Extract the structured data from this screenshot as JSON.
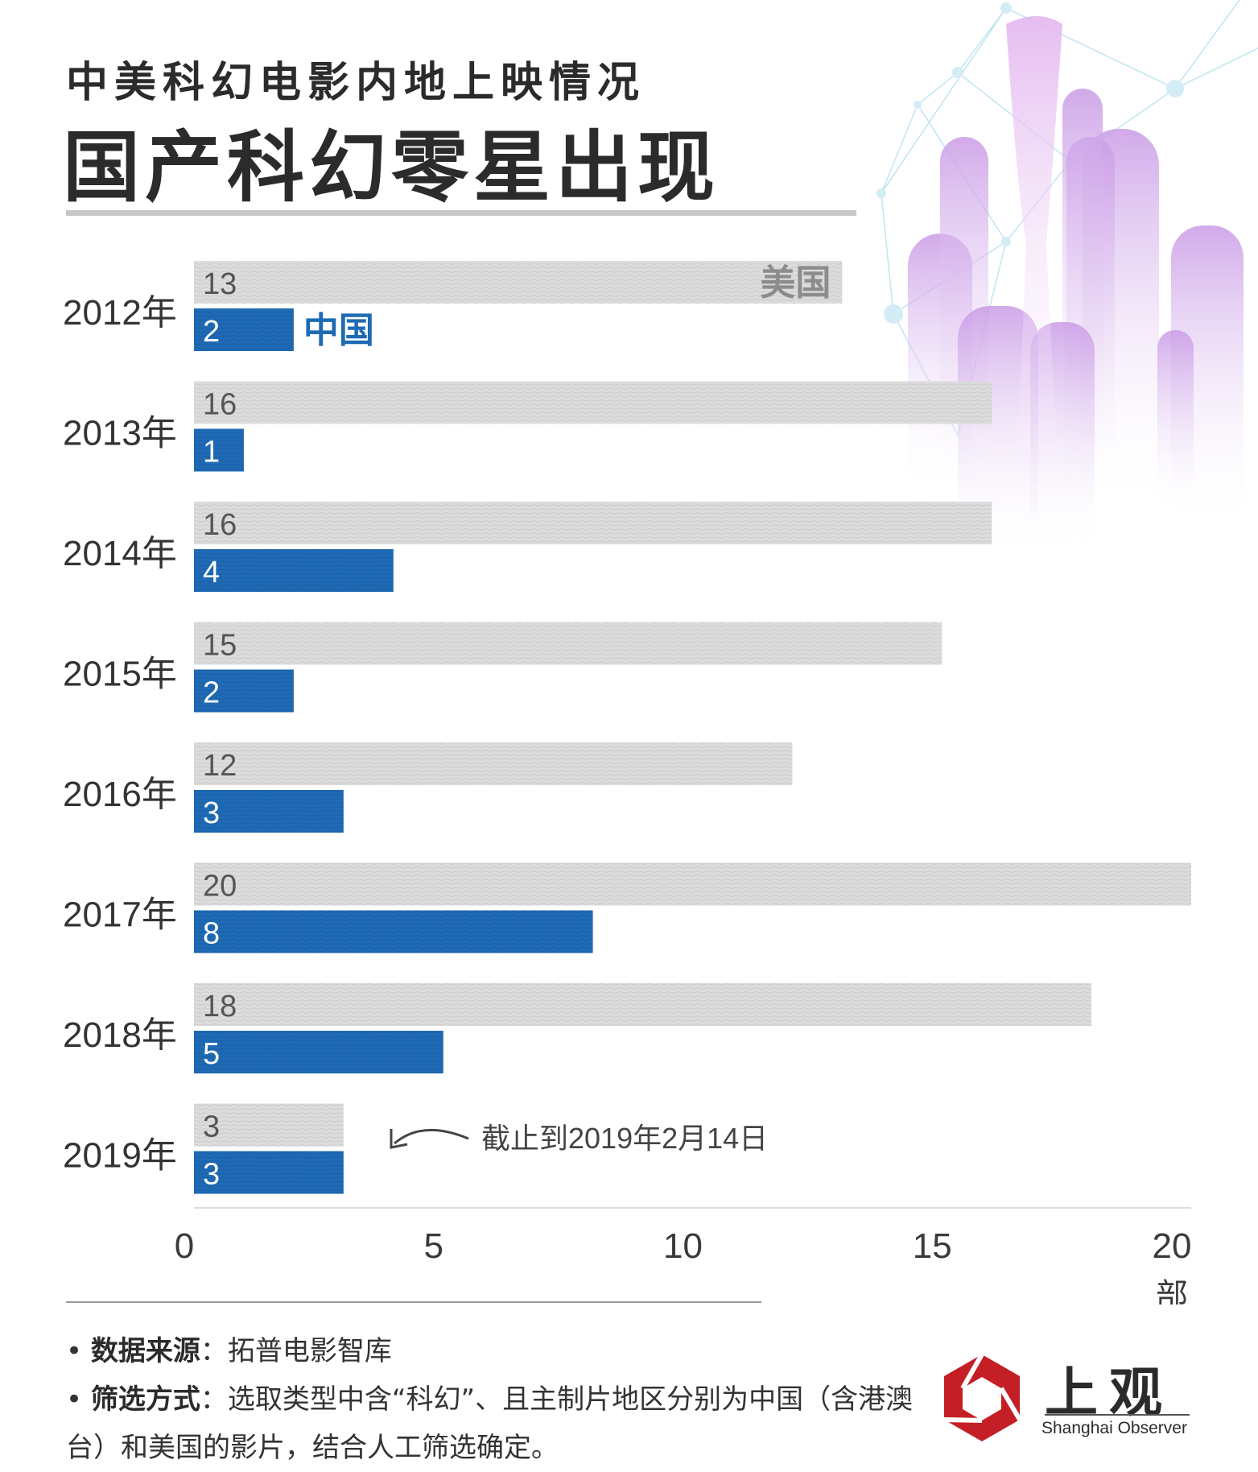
{
  "header": {
    "subtitle": "中美科幻电影内地上映情况",
    "title": "国产科幻零星出现"
  },
  "chart_data": {
    "type": "bar",
    "orientation": "horizontal",
    "categories": [
      "2012年",
      "2013年",
      "2014年",
      "2015年",
      "2016年",
      "2017年",
      "2018年",
      "2019年"
    ],
    "series": [
      {
        "name": "美国",
        "values": [
          13,
          16,
          16,
          15,
          12,
          20,
          18,
          3
        ],
        "color": "#d9d9d9"
      },
      {
        "name": "中国",
        "values": [
          2,
          1,
          4,
          2,
          3,
          8,
          5,
          3
        ],
        "color": "#1f6ab5"
      }
    ],
    "xlim": [
      0,
      20
    ],
    "xticks": [
      "0",
      "5",
      "10",
      "15",
      "20"
    ],
    "xlabel": "部",
    "annotation": "截止到2019年2月14日"
  },
  "footer": {
    "source_label": "数据来源",
    "source_text": "：拓普电影智库",
    "method_label": "筛选方式",
    "method_text": "：选取类型中含“科幻”、且主制片地区分别为中国（含港澳台）和美国的影片，结合人工筛选确定。"
  },
  "logo": {
    "name": "上观",
    "sub": "Shanghai Observer",
    "color": "#c41e26"
  }
}
